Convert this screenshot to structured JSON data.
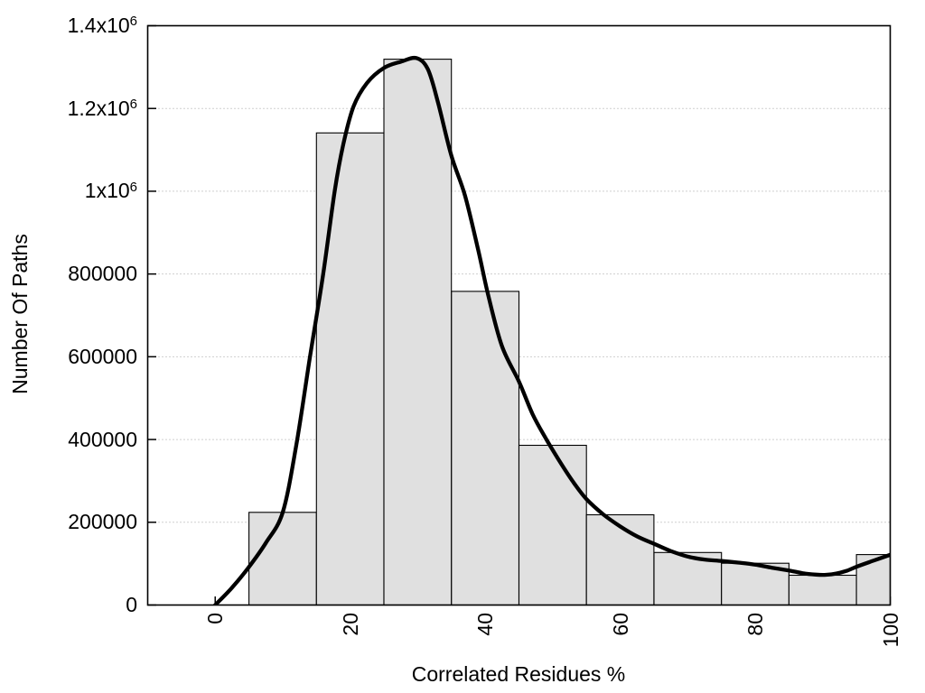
{
  "chart_data": {
    "type": "bar",
    "subtype": "histogram-with-smooth-curve",
    "title": "",
    "xlabel": "Correlated Residues %",
    "ylabel": "Number Of Paths",
    "xlim": [
      -10,
      100
    ],
    "ylim": [
      0,
      1400000
    ],
    "grid": {
      "horizontal": true,
      "vertical": false,
      "style": "dotted"
    },
    "legend": "none",
    "x_ticks": {
      "values": [
        0,
        20,
        40,
        60,
        80,
        100
      ],
      "labels": [
        "0",
        "20",
        "40",
        "60",
        "80",
        "100"
      ],
      "rotation_deg": -90
    },
    "y_ticks": {
      "values": [
        0,
        200000,
        400000,
        600000,
        800000,
        1000000,
        1200000,
        1400000
      ],
      "labels": [
        "0",
        "200000",
        "400000",
        "600000",
        "800000",
        "1x10^6",
        "1.2x10^6",
        "1.4x10^6"
      ]
    },
    "bars": {
      "name": "paths-histogram",
      "bin_width": 10,
      "centers": [
        10,
        20,
        30,
        40,
        50,
        60,
        70,
        80,
        90,
        100
      ],
      "values": [
        224000,
        1141000,
        1319000,
        758000,
        386000,
        218000,
        127000,
        101000,
        72000,
        122000
      ],
      "clipped_at_x": 100
    },
    "line": {
      "name": "smooth-density-curve",
      "points": [
        [
          0,
          0
        ],
        [
          2.5,
          42000
        ],
        [
          5,
          92000
        ],
        [
          7.5,
          150000
        ],
        [
          10,
          224000
        ],
        [
          12,
          385000
        ],
        [
          14,
          595000
        ],
        [
          16,
          800000
        ],
        [
          17.7,
          1000000
        ],
        [
          19,
          1115000
        ],
        [
          20.5,
          1205000
        ],
        [
          22.5,
          1262000
        ],
        [
          25,
          1298000
        ],
        [
          27.5,
          1313000
        ],
        [
          29.8,
          1322000
        ],
        [
          31.5,
          1295000
        ],
        [
          33,
          1215000
        ],
        [
          35,
          1085000
        ],
        [
          37,
          990000
        ],
        [
          39,
          855000
        ],
        [
          40.5,
          745000
        ],
        [
          42.5,
          625000
        ],
        [
          45,
          540000
        ],
        [
          47,
          462000
        ],
        [
          49,
          402000
        ],
        [
          51,
          348000
        ],
        [
          53,
          298000
        ],
        [
          55,
          256000
        ],
        [
          57.5,
          219000
        ],
        [
          60,
          190000
        ],
        [
          62.5,
          166000
        ],
        [
          65,
          148000
        ],
        [
          67.5,
          130500
        ],
        [
          70,
          117000
        ],
        [
          72.5,
          110000
        ],
        [
          75,
          106500
        ],
        [
          77.5,
          102500
        ],
        [
          80,
          97500
        ],
        [
          82.5,
          90000
        ],
        [
          85,
          83500
        ],
        [
          87,
          77000
        ],
        [
          89,
          73500
        ],
        [
          90.5,
          73000
        ],
        [
          92,
          76000
        ],
        [
          93.5,
          82500
        ],
        [
          95,
          92500
        ],
        [
          97.5,
          107000
        ],
        [
          100,
          121500
        ]
      ]
    }
  },
  "style": {
    "background": "#ffffff",
    "bar_fill": "#e0e0e0",
    "bar_border": "#000000",
    "curve_color": "#000000",
    "grid_color": "#a0a0a0",
    "axis_color": "#000000",
    "text_color": "#000000"
  }
}
